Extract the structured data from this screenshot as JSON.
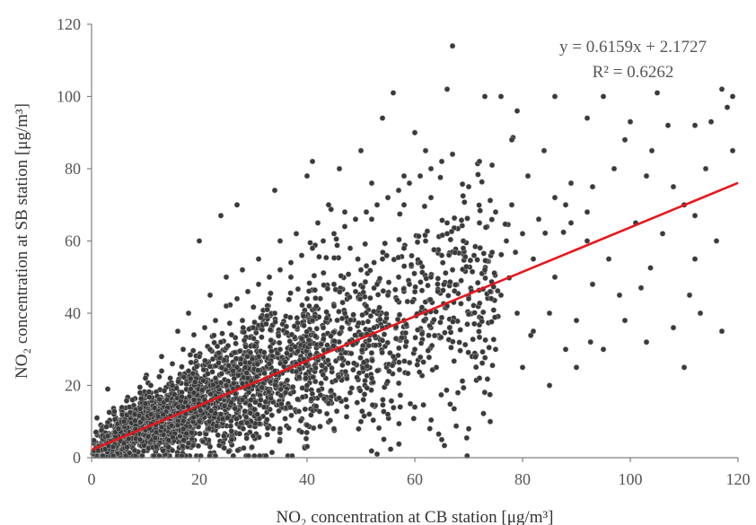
{
  "chart_data": {
    "type": "scatter",
    "xlabel": "NO₂ concentration at CB station [μg/m³]",
    "ylabel": "NO₂ concentration at SB station [μg/m³]",
    "xlim": [
      0,
      120
    ],
    "ylim": [
      0,
      120
    ],
    "xticks": [
      0,
      20,
      40,
      60,
      80,
      100,
      120
    ],
    "yticks": [
      0,
      20,
      40,
      60,
      80,
      100,
      120
    ],
    "grid": false,
    "marker_color": "#3a3a3a",
    "trendline": {
      "slope": 0.6159,
      "intercept": 2.1727,
      "color": "#e8161c",
      "equation_label": "y = 0.6159x + 2.1727",
      "r2_label": "R² = 0.6262"
    },
    "points": [
      [
        67,
        114
      ],
      [
        56,
        101
      ],
      [
        66,
        102
      ],
      [
        73,
        100
      ],
      [
        76,
        100
      ],
      [
        79,
        96
      ],
      [
        86,
        100
      ],
      [
        95,
        100
      ],
      [
        105,
        101
      ],
      [
        117,
        102
      ],
      [
        119,
        100
      ],
      [
        118,
        97
      ],
      [
        92,
        94
      ],
      [
        100,
        93
      ],
      [
        112,
        92
      ],
      [
        54,
        94
      ],
      [
        41,
        82
      ],
      [
        40,
        78
      ],
      [
        34,
        74
      ],
      [
        24,
        67
      ],
      [
        27,
        70
      ],
      [
        20,
        60
      ],
      [
        3,
        19
      ],
      [
        1,
        11
      ],
      [
        53,
        1
      ],
      [
        65,
        5
      ],
      [
        70,
        8
      ],
      [
        74,
        10
      ],
      [
        80,
        25
      ],
      [
        85,
        20
      ],
      [
        90,
        25
      ],
      [
        95,
        30
      ],
      [
        98,
        45
      ],
      [
        102,
        47
      ],
      [
        110,
        25
      ],
      [
        112,
        55
      ],
      [
        116,
        60
      ],
      [
        117,
        35
      ],
      [
        113,
        40
      ],
      [
        108,
        75
      ],
      [
        104,
        85
      ],
      [
        97,
        80
      ],
      [
        88,
        70
      ],
      [
        84,
        85
      ],
      [
        81,
        78
      ],
      [
        77,
        60
      ],
      [
        92,
        60
      ],
      [
        96,
        55
      ],
      [
        101,
        65
      ],
      [
        106,
        62
      ],
      [
        110,
        70
      ],
      [
        114,
        80
      ],
      [
        119,
        85
      ],
      [
        115,
        93
      ],
      [
        90,
        38
      ],
      [
        85,
        40
      ],
      [
        88,
        30
      ],
      [
        93,
        48
      ],
      [
        99,
        38
      ],
      [
        103,
        32
      ],
      [
        108,
        36
      ],
      [
        111,
        45
      ],
      [
        82,
        55
      ],
      [
        86,
        50
      ],
      [
        89,
        65
      ],
      [
        93,
        75
      ],
      [
        99,
        88
      ],
      [
        103,
        78
      ],
      [
        107,
        92
      ],
      [
        112,
        67
      ],
      [
        70,
        75
      ],
      [
        72,
        82
      ],
      [
        78,
        88
      ],
      [
        62,
        85
      ],
      [
        60,
        90
      ],
      [
        58,
        78
      ],
      [
        50,
        85
      ],
      [
        46,
        80
      ],
      [
        52,
        76
      ],
      [
        44,
        70
      ],
      [
        8,
        2
      ],
      [
        12,
        3
      ],
      [
        15,
        2
      ],
      [
        18,
        4
      ],
      [
        22,
        3
      ],
      [
        26,
        5
      ],
      [
        30,
        6
      ],
      [
        35,
        8
      ],
      [
        40,
        9
      ],
      [
        45,
        8
      ],
      [
        50,
        10
      ],
      [
        55,
        12
      ],
      [
        60,
        14
      ],
      [
        5,
        8
      ],
      [
        7,
        14
      ],
      [
        10,
        22
      ],
      [
        13,
        28
      ],
      [
        16,
        35
      ],
      [
        18,
        40
      ],
      [
        22,
        45
      ],
      [
        25,
        50
      ],
      [
        28,
        52
      ],
      [
        31,
        55
      ],
      [
        35,
        60
      ],
      [
        38,
        62
      ],
      [
        42,
        65
      ],
      [
        47,
        68
      ],
      [
        33,
        44
      ],
      [
        28,
        38
      ],
      [
        37,
        50
      ],
      [
        48,
        58
      ],
      [
        52,
        66
      ],
      [
        58,
        70
      ],
      [
        63,
        72
      ],
      [
        66,
        65
      ],
      [
        69,
        58
      ],
      [
        73,
        52
      ],
      [
        76,
        45
      ],
      [
        79,
        40
      ],
      [
        82,
        35
      ],
      [
        75,
        30
      ],
      [
        72,
        22
      ],
      [
        68,
        18
      ],
      [
        64,
        25
      ],
      [
        60,
        30
      ],
      [
        56,
        28
      ],
      [
        52,
        22
      ],
      [
        48,
        18
      ],
      [
        44,
        15
      ],
      [
        40,
        20
      ],
      [
        36,
        18
      ],
      [
        32,
        14
      ],
      [
        28,
        16
      ],
      [
        24,
        12
      ],
      [
        20,
        10
      ],
      [
        16,
        9
      ],
      [
        12,
        7
      ],
      [
        9,
        5
      ],
      [
        6,
        4
      ],
      [
        4,
        3
      ],
      [
        3,
        6
      ],
      [
        11,
        12
      ],
      [
        14,
        16
      ],
      [
        19,
        18
      ],
      [
        23,
        22
      ],
      [
        27,
        25
      ],
      [
        31,
        28
      ],
      [
        35,
        30
      ],
      [
        39,
        33
      ],
      [
        43,
        36
      ],
      [
        47,
        40
      ],
      [
        51,
        42
      ],
      [
        55,
        45
      ],
      [
        59,
        48
      ],
      [
        63,
        50
      ],
      [
        67,
        52
      ],
      [
        71,
        56
      ],
      [
        20,
        28
      ],
      [
        24,
        32
      ],
      [
        30,
        36
      ],
      [
        34,
        40
      ],
      [
        40,
        44
      ],
      [
        45,
        48
      ],
      [
        50,
        52
      ],
      [
        54,
        55
      ],
      [
        58,
        58
      ],
      [
        62,
        60
      ],
      [
        66,
        62
      ],
      [
        15,
        20
      ],
      [
        18,
        24
      ],
      [
        22,
        30
      ],
      [
        26,
        34
      ],
      [
        30,
        20
      ],
      [
        34,
        24
      ],
      [
        38,
        26
      ],
      [
        42,
        28
      ],
      [
        46,
        30
      ],
      [
        50,
        34
      ],
      [
        54,
        36
      ],
      [
        58,
        38
      ],
      [
        62,
        40
      ],
      [
        66,
        42
      ],
      [
        70,
        44
      ],
      [
        74,
        46
      ],
      [
        10,
        15
      ],
      [
        13,
        10
      ],
      [
        17,
        14
      ],
      [
        21,
        16
      ],
      [
        25,
        20
      ],
      [
        29,
        22
      ],
      [
        33,
        26
      ],
      [
        37,
        30
      ],
      [
        41,
        38
      ],
      [
        45,
        42
      ],
      [
        49,
        46
      ],
      [
        53,
        48
      ],
      [
        57,
        50
      ],
      [
        61,
        54
      ],
      [
        65,
        56
      ],
      [
        69,
        60
      ],
      [
        72,
        65
      ],
      [
        75,
        68
      ],
      [
        78,
        70
      ],
      [
        80,
        62
      ],
      [
        83,
        66
      ],
      [
        86,
        72
      ],
      [
        89,
        76
      ],
      [
        92,
        68
      ],
      [
        6,
        10
      ],
      [
        8,
        12
      ],
      [
        9,
        18
      ],
      [
        11,
        20
      ],
      [
        13,
        24
      ],
      [
        15,
        26
      ],
      [
        17,
        30
      ],
      [
        19,
        34
      ],
      [
        21,
        36
      ],
      [
        23,
        38
      ],
      [
        25,
        42
      ],
      [
        27,
        44
      ],
      [
        29,
        46
      ],
      [
        31,
        48
      ],
      [
        33,
        50
      ],
      [
        35,
        52
      ],
      [
        37,
        54
      ],
      [
        39,
        56
      ],
      [
        41,
        58
      ],
      [
        43,
        60
      ],
      [
        45,
        62
      ],
      [
        47,
        64
      ],
      [
        49,
        66
      ],
      [
        51,
        68
      ],
      [
        53,
        70
      ],
      [
        55,
        72
      ],
      [
        57,
        74
      ],
      [
        59,
        76
      ],
      [
        61,
        78
      ],
      [
        63,
        80
      ],
      [
        65,
        82
      ],
      [
        67,
        84
      ]
    ]
  }
}
